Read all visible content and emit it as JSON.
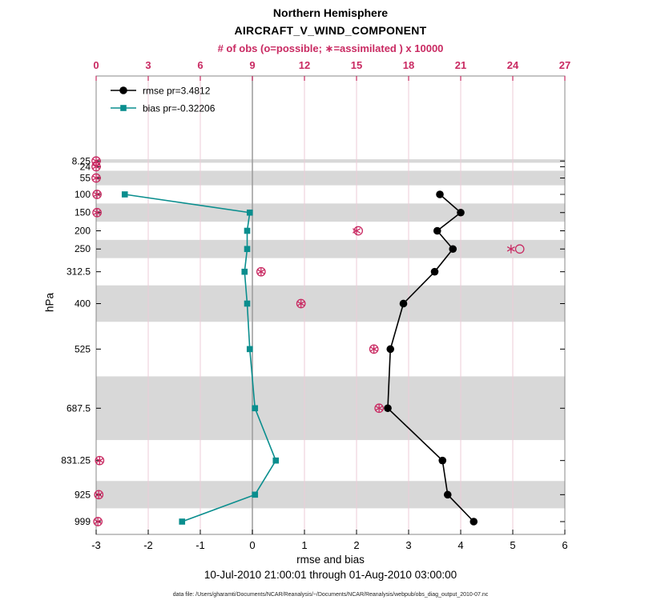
{
  "title": {
    "line1": "Northern Hemisphere",
    "line2": "AIRCRAFT_V_WIND_COMPONENT"
  },
  "top_axis": {
    "label": "# of obs (o=possible; ∗=assimilated ) x 10000",
    "min": 0,
    "max": 27,
    "ticks": [
      0,
      3,
      6,
      9,
      12,
      15,
      18,
      21,
      24,
      27
    ]
  },
  "bottom_axis": {
    "label": "rmse and bias",
    "min": -3,
    "max": 6,
    "ticks": [
      -3,
      -2,
      -1,
      0,
      1,
      2,
      3,
      4,
      5,
      6
    ]
  },
  "left_axis": {
    "label": "hPa"
  },
  "legend": [
    {
      "series": "rmse",
      "label": "rmse pr=3.4812"
    },
    {
      "series": "bias",
      "label": "bias pr=-0.32206"
    }
  ],
  "caption": "10-Jul-2010 21:00:01 through 01-Aug-2010 03:00:00",
  "footnote": "data file: /Users/gharamti/Documents/NCAR/Reanalysis/~/Documents/NCAR/Reanalysis/webpub/obs_diag_output_2010-07.nc",
  "colors": {
    "obs": "#c92a62",
    "rmse": "#000000",
    "bias": "#0a8e8e",
    "band": "#d8d8d8",
    "grid": "#eccbd7",
    "zero_line": "#9a9a9a",
    "frame": "#888888",
    "tick": "#000000"
  },
  "chart_data": {
    "type": "line",
    "orientation": "vertical-profile",
    "ylabel": "hPa",
    "xlabel": "rmse and bias",
    "x2label": "# of obs (o=possible; ∗=assimilated ) x 10000",
    "y_levels_hPa": [
      8.25,
      24,
      55,
      100,
      150,
      200,
      250,
      312.5,
      400,
      525,
      687.5,
      831.25,
      925,
      999
    ],
    "level_edges_hPa": [
      3.5,
      13,
      35,
      75,
      125,
      175,
      225,
      275,
      350,
      450,
      600,
      775,
      887.5,
      962.5,
      1035.5
    ],
    "shaded_levels_hPa": [
      8.25,
      55,
      150,
      250,
      400,
      687.5,
      925
    ],
    "series": [
      {
        "name": "rmse",
        "marker": "filled-circle",
        "axis": "bottom",
        "levels_hPa": [
          100,
          150,
          200,
          250,
          312.5,
          400,
          525,
          687.5,
          831.25,
          925,
          999
        ],
        "values": [
          3.6,
          4.0,
          3.55,
          3.85,
          3.5,
          2.9,
          2.65,
          2.6,
          3.65,
          3.75,
          4.25
        ]
      },
      {
        "name": "bias",
        "marker": "filled-square",
        "axis": "bottom",
        "levels_hPa": [
          100,
          150,
          200,
          250,
          312.5,
          400,
          525,
          687.5,
          831.25,
          925,
          999
        ],
        "values": [
          -2.45,
          -0.05,
          -0.1,
          -0.1,
          -0.15,
          -0.1,
          -0.05,
          0.05,
          0.45,
          0.05,
          -1.35
        ]
      },
      {
        "name": "obs_possible_x10000",
        "marker": "open-circle",
        "axis": "top",
        "levels_hPa": [
          8.25,
          24,
          55,
          100,
          150,
          200,
          250,
          312.5,
          400,
          525,
          687.5,
          831.25,
          925,
          999
        ],
        "values": [
          0,
          0,
          0,
          0.05,
          0.05,
          15.1,
          24.4,
          9.5,
          11.8,
          16.0,
          16.3,
          0.2,
          0.15,
          0.1
        ]
      },
      {
        "name": "obs_assimilated_x10000",
        "marker": "asterisk",
        "axis": "top",
        "levels_hPa": [
          8.25,
          24,
          55,
          100,
          150,
          200,
          250,
          312.5,
          400,
          525,
          687.5,
          831.25,
          925,
          999
        ],
        "values": [
          0,
          0,
          0,
          0.05,
          0.05,
          15.0,
          23.9,
          9.5,
          11.8,
          16.0,
          16.3,
          0.2,
          0.15,
          0.1
        ]
      }
    ]
  }
}
